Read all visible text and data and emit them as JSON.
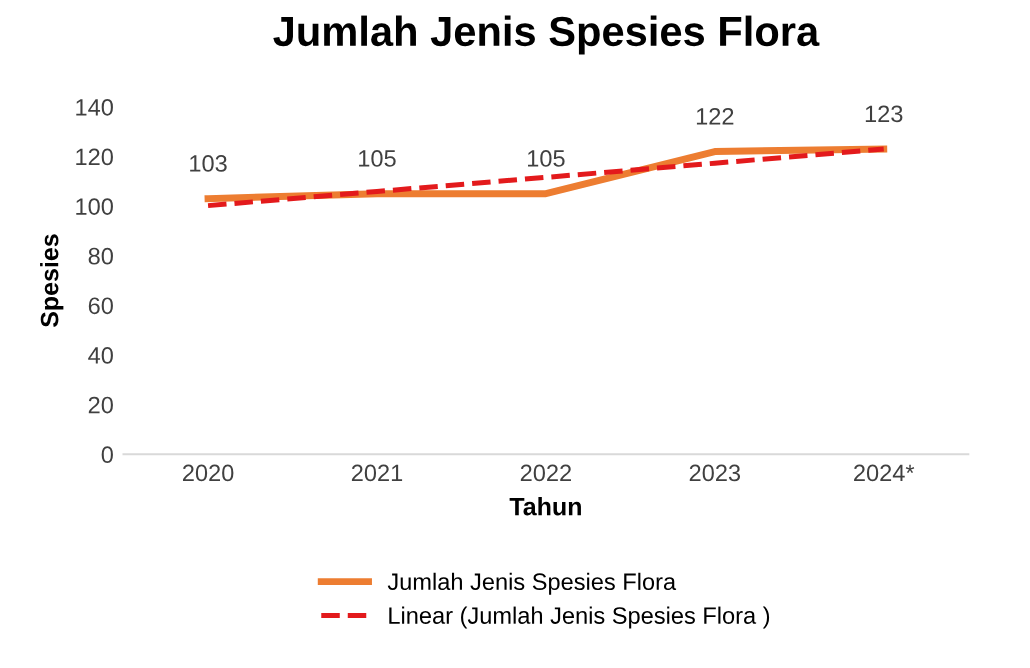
{
  "chart_data": {
    "type": "line",
    "title": "Jumlah Jenis Spesies Flora",
    "xlabel": "Tahun",
    "ylabel": "Spesies",
    "categories": [
      "2020",
      "2021",
      "2022",
      "2023",
      "2024*"
    ],
    "series": [
      {
        "name": "Jumlah Jenis Spesies Flora",
        "color": "#ed7d31",
        "values": [
          103,
          105,
          105,
          122,
          123
        ],
        "line_style": "solid",
        "data_labels": true
      },
      {
        "name": "Linear (Jumlah Jenis Spesies Flora )",
        "color": "#e31a1c",
        "values": [
          100.2,
          105.9,
          111.6,
          117.3,
          123.0
        ],
        "line_style": "dashed"
      }
    ],
    "ylim": [
      0,
      140
    ],
    "yticks": [
      0,
      20,
      40,
      60,
      80,
      100,
      120,
      140
    ],
    "grid": false,
    "legend": "bottom",
    "marker": "none"
  }
}
